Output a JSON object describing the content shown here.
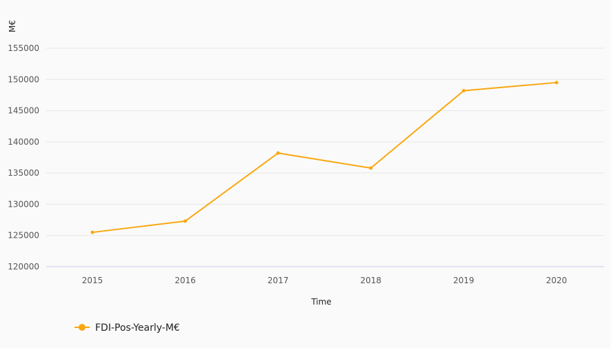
{
  "chart_data": {
    "type": "line",
    "title": "",
    "xlabel": "Time",
    "ylabel": "M€",
    "categories": [
      "2015",
      "2016",
      "2017",
      "2018",
      "2019",
      "2020"
    ],
    "series": [
      {
        "name": "FDI-Pos-Yearly-M€",
        "color": "#f9a70f",
        "values": [
          125500,
          127300,
          138200,
          135800,
          148200,
          149500
        ]
      }
    ],
    "ylim": [
      120000,
      155000
    ],
    "yticks": [
      "120000",
      "125000",
      "130000",
      "135000",
      "140000",
      "145000",
      "150000",
      "155000"
    ],
    "grid": true,
    "legend_position": "bottom-left"
  }
}
